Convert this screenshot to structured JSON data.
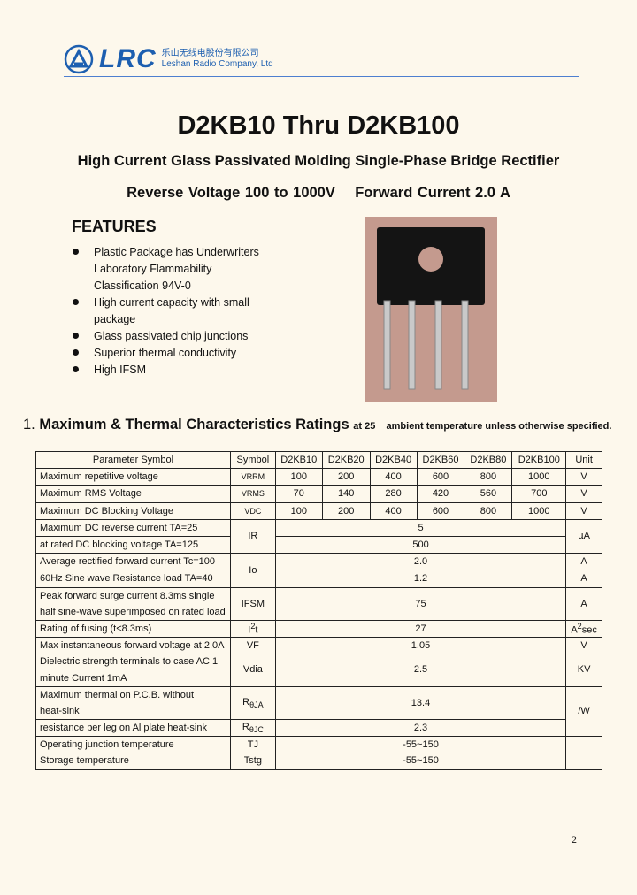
{
  "header": {
    "logo_text": "LRC",
    "company_cn": "乐山无线电股份有限公司",
    "company_en": "Leshan Radio Company, Ltd",
    "brand_color": "#1d5fb0"
  },
  "title": "D2KB10 Thru D2KB100",
  "subtitle": "High Current Glass Passivated Molding Single-Phase Bridge Rectifier",
  "spec": {
    "reverse": "Reverse Voltage 100 to 1000V",
    "forward": "Forward Current 2.0 A"
  },
  "features": {
    "heading": "FEATURES",
    "items": [
      "Plastic Package has Underwriters Laboratory Flammability Classification 94V-0",
      "High current capacity with small package",
      "Glass passivated chip junctions",
      "Superior thermal conductivity",
      "High IFSM"
    ]
  },
  "section": {
    "number": "1.",
    "title": "Maximum & Thermal Characteristics Ratings",
    "note": "at 25    ambient temperature unless otherwise specified."
  },
  "table": {
    "headers": [
      "Parameter Symbol",
      "Symbol",
      "D2KB10",
      "D2KB20",
      "D2KB40",
      "D2KB60",
      "D2KB80",
      "D2KB100",
      "Unit"
    ],
    "vrrm": {
      "param": "Maximum repetitive voltage",
      "sym": "VRRM",
      "vals": [
        "100",
        "200",
        "400",
        "600",
        "800",
        "1000"
      ],
      "unit": "V"
    },
    "vrms": {
      "param": "Maximum RMS Voltage",
      "sym": "VRMS",
      "vals": [
        "70",
        "140",
        "280",
        "420",
        "560",
        "700"
      ],
      "unit": "V"
    },
    "vdc": {
      "param": "Maximum DC Blocking Voltage",
      "sym": "VDC",
      "vals": [
        "100",
        "200",
        "400",
        "600",
        "800",
        "1000"
      ],
      "unit": "V"
    },
    "ir": {
      "param1": "Maximum DC reverse current TA=25",
      "param2": "at rated DC blocking voltage TA=125",
      "sym": "IR",
      "val1": "5",
      "val2": "500",
      "unit": "µA"
    },
    "io": {
      "param1": "Average rectified forward current Tc=100",
      "param2": "60Hz Sine wave Resistance load TA=40",
      "sym": "Io",
      "val1": "2.0",
      "val2": "1.2",
      "unit1": "A",
      "unit2": "A"
    },
    "ifsm": {
      "param1": "Peak forward surge current 8.3ms single",
      "param2": "half sine-wave superimposed on rated load",
      "sym": "IFSM",
      "val": "75",
      "unit": "A"
    },
    "i2t": {
      "param": "Rating of fusing (t<8.3ms)",
      "sym": "I",
      "sup": "2",
      "sym2": "t",
      "val": "27",
      "unit": "A",
      "unit_sup": "2",
      "unit2": "sec"
    },
    "vf": {
      "param": "Max instantaneous forward voltage at 2.0A",
      "sym": "VF",
      "val": "1.05",
      "unit": "V"
    },
    "vdia": {
      "param1": "Dielectric strength terminals to case    AC 1",
      "param2": "minute Current 1mA",
      "sym": "Vdia",
      "val": "2.5",
      "unit": "KV"
    },
    "rja": {
      "param1": "Maximum thermal on P.C.B. without",
      "param2": "heat-sink",
      "sym": "R",
      "sub": "θJA",
      "val": "13.4",
      "unit": "/W"
    },
    "rjc": {
      "param": "resistance per leg on Al plate heat-sink",
      "sym": "R",
      "sub": "θJC",
      "val": "2.3"
    },
    "tj": {
      "param": "Operating junction temperature",
      "sym": "TJ",
      "val": "-55~150"
    },
    "tstg": {
      "param": "Storage temperature",
      "sym": "Tstg",
      "val": "-55~150"
    }
  },
  "page_number": "2"
}
